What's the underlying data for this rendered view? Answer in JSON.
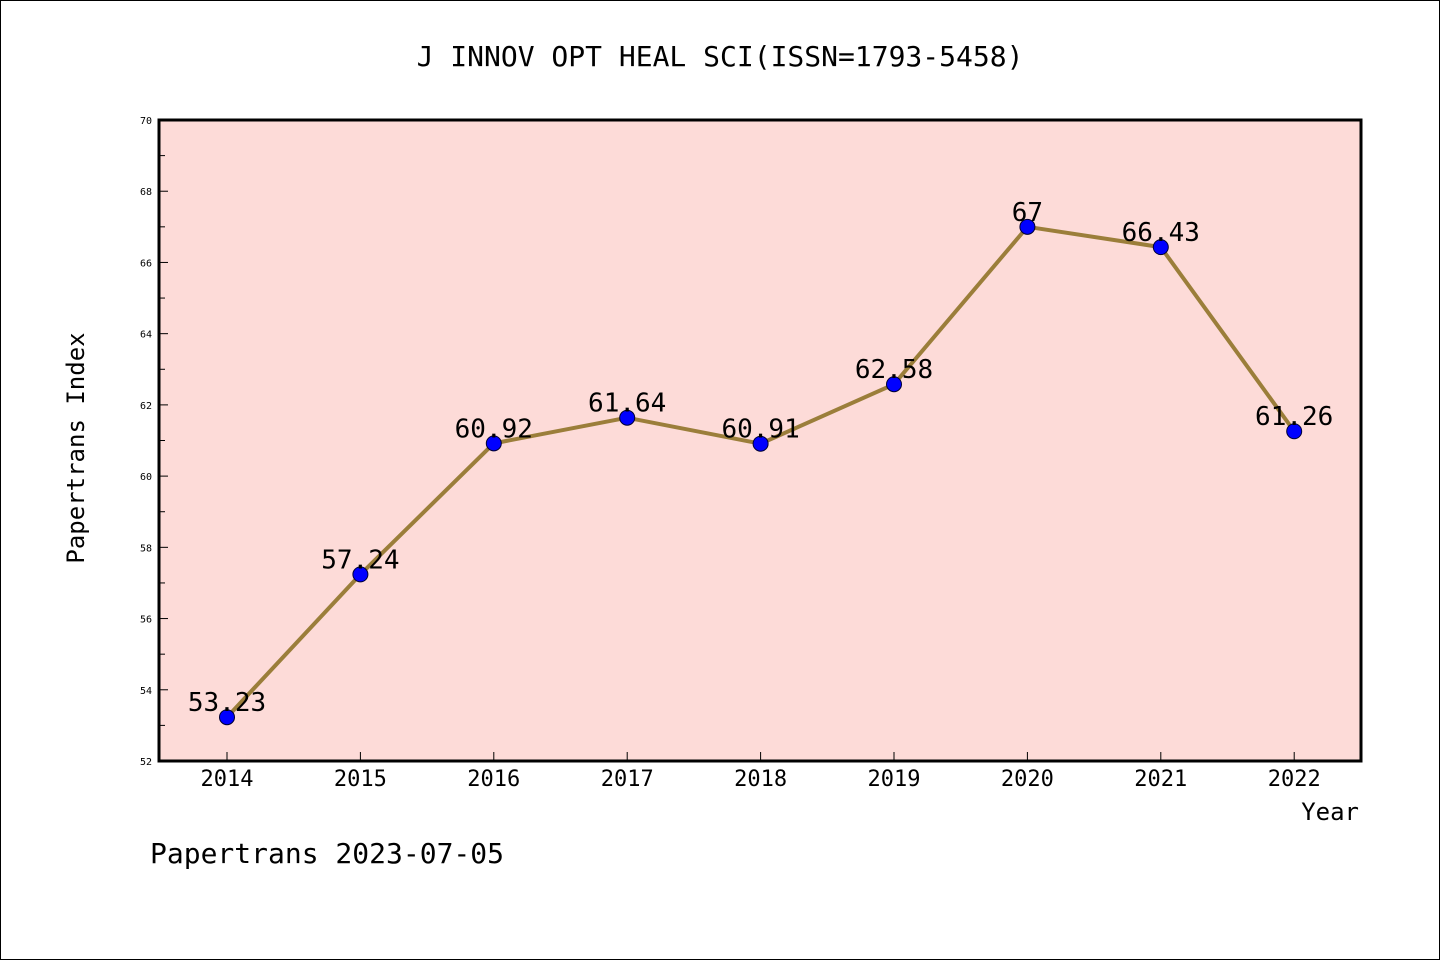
{
  "chart_data": {
    "type": "line",
    "title": "J INNOV OPT HEAL SCI(ISSN=1793-5458)",
    "xlabel": "Year",
    "ylabel": "Papertrans Index",
    "categories": [
      "2014",
      "2015",
      "2016",
      "2017",
      "2018",
      "2019",
      "2020",
      "2021",
      "2022"
    ],
    "values": [
      53.23,
      57.24,
      60.92,
      61.64,
      60.91,
      62.58,
      67,
      66.43,
      61.26
    ],
    "data_labels": [
      "53.23",
      "57.24",
      "60.92",
      "61.64",
      "60.91",
      "62.58",
      "67",
      "66.43",
      "61.26"
    ],
    "ylim": [
      52,
      70
    ],
    "y_ticks": [
      "52",
      "54",
      "56",
      "58",
      "60",
      "62",
      "64",
      "66",
      "68",
      "70"
    ],
    "grid": false,
    "legend": "none",
    "line_color": "#9b7e3a",
    "marker_color": "#0000ff",
    "plot_background": "#fddbd8"
  },
  "footer": {
    "text": "Papertrans 2023-07-05"
  }
}
